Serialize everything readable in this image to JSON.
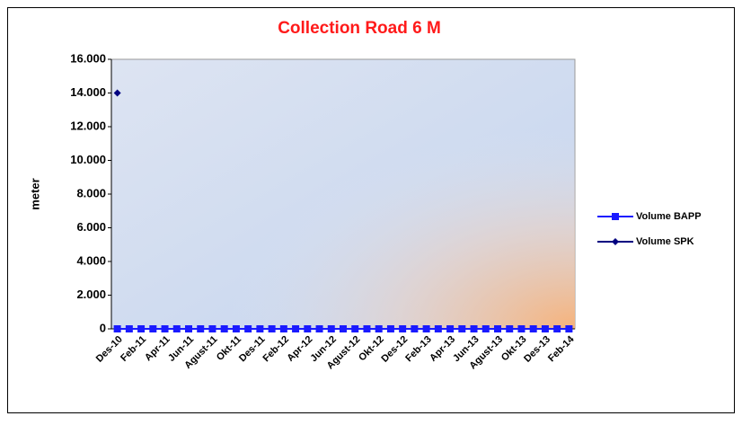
{
  "chart_data": {
    "type": "line",
    "title": "Collection Road 6 M",
    "ylabel": "meter",
    "categories": [
      "Des-10",
      null,
      "Feb-11",
      null,
      "Apr-11",
      null,
      "Jun-11",
      null,
      "Agust-11",
      null,
      "Okt-11",
      null,
      "Des-11",
      null,
      "Feb-12",
      null,
      "Apr-12",
      null,
      "Jun-12",
      null,
      "Agust-12",
      null,
      "Okt-12",
      null,
      "Des-12",
      null,
      "Feb-13",
      null,
      "Apr-13",
      null,
      "Jun-13",
      null,
      "Agust-13",
      null,
      "Okt-13",
      null,
      "Des-13",
      null,
      "Feb-14"
    ],
    "series": [
      {
        "name": "Volume BAPP",
        "color": "#1a1aff",
        "marker": "square",
        "values": [
          0,
          0,
          0,
          0,
          0,
          0,
          0,
          0,
          0,
          0,
          0,
          0,
          0,
          0,
          0,
          0,
          0,
          0,
          0,
          0,
          0,
          0,
          0,
          0,
          0,
          0,
          0,
          0,
          0,
          0,
          0,
          0,
          0,
          0,
          0,
          0,
          0,
          0,
          0
        ]
      },
      {
        "name": "Volume SPK",
        "color": "#000080",
        "marker": "diamond",
        "values": [
          14000,
          null,
          null,
          null,
          null,
          null,
          null,
          null,
          null,
          null,
          null,
          null,
          null,
          null,
          null,
          null,
          null,
          null,
          null,
          null,
          null,
          null,
          null,
          null,
          null,
          null,
          null,
          null,
          null,
          null,
          null,
          null,
          null,
          null,
          null,
          null,
          null,
          null,
          null
        ]
      }
    ],
    "ylim": [
      0,
      16000
    ],
    "yticks": [
      0,
      {
        "value": 2000,
        "label": "2.000"
      },
      {
        "value": 4000,
        "label": "4.000"
      },
      {
        "value": 6000,
        "label": "6.000"
      },
      {
        "value": 8000,
        "label": "8.000"
      },
      {
        "value": 10000,
        "label": "10.000"
      },
      {
        "value": 12000,
        "label": "12.000"
      },
      {
        "value": 14000,
        "label": "14.000"
      },
      {
        "value": 16000,
        "label": "16.000"
      }
    ],
    "grid": false,
    "legend": "right"
  }
}
